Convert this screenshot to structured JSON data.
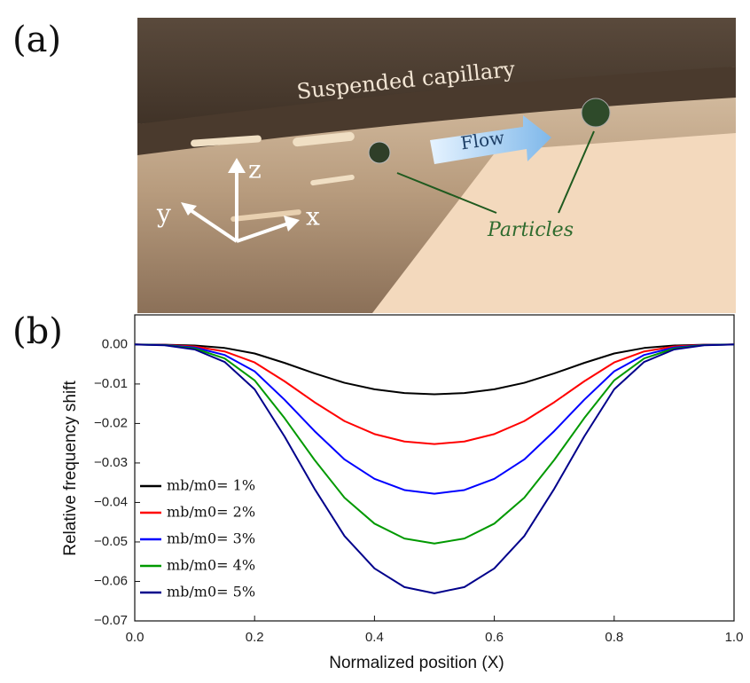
{
  "figure": {
    "panel_a_label": "(a)",
    "panel_b_label": "(b)",
    "illustration": {
      "capillary_label": "Suspended capillary",
      "flow_label": "Flow",
      "particles_label": "Particles",
      "axis_x": "x",
      "axis_y": "y",
      "axis_z": "z"
    }
  },
  "chart_data": {
    "type": "line",
    "x_label": "Normalized position (X)",
    "y_label": "Relative frequency shift",
    "x": [
      0,
      0.05,
      0.1,
      0.15,
      0.2,
      0.25,
      0.3,
      0.35,
      0.4,
      0.45,
      0.5,
      0.55,
      0.6,
      0.65,
      0.7,
      0.75,
      0.8,
      0.85,
      0.9,
      0.95,
      1
    ],
    "series": [
      {
        "name": "mb/m0= 1%",
        "color": "#000000",
        "values": [
          0,
          -4e-05,
          -0.00025,
          -0.00088,
          -0.00227,
          -0.00466,
          -0.00731,
          -0.0097,
          -0.01134,
          -0.01229,
          -0.0126,
          -0.01229,
          -0.01134,
          -0.0097,
          -0.00731,
          -0.00466,
          -0.00227,
          -0.00088,
          -0.00025,
          -4e-05,
          0
        ]
      },
      {
        "name": "mb/m0= 2%",
        "color": "#ff0000",
        "values": [
          0,
          -8e-05,
          -0.0005,
          -0.00176,
          -0.00454,
          -0.00932,
          -0.01462,
          -0.0194,
          -0.02268,
          -0.02457,
          -0.0252,
          -0.02457,
          -0.02268,
          -0.0194,
          -0.01462,
          -0.00932,
          -0.00454,
          -0.00176,
          -0.0005,
          -8e-05,
          0
        ]
      },
      {
        "name": "mb/m0= 3%",
        "color": "#0000ff",
        "values": [
          0,
          -0.00011,
          -0.00076,
          -0.00265,
          -0.0068,
          -0.01399,
          -0.02192,
          -0.02911,
          -0.03402,
          -0.03686,
          -0.0378,
          -0.03686,
          -0.03402,
          -0.02911,
          -0.02192,
          -0.01399,
          -0.0068,
          -0.00265,
          -0.00076,
          -0.00011,
          0
        ]
      },
      {
        "name": "mb/m0= 4%",
        "color": "#009900",
        "values": [
          0,
          -0.00015,
          -0.00101,
          -0.00353,
          -0.00907,
          -0.01865,
          -0.02923,
          -0.03881,
          -0.04536,
          -0.04914,
          -0.0504,
          -0.04914,
          -0.04536,
          -0.03881,
          -0.02923,
          -0.01865,
          -0.00907,
          -0.00353,
          -0.00101,
          -0.00015,
          0
        ]
      },
      {
        "name": "mb/m0= 5%",
        "color": "#00008b",
        "values": [
          0,
          -0.00019,
          -0.00126,
          -0.00441,
          -0.01134,
          -0.02331,
          -0.03654,
          -0.04851,
          -0.0567,
          -0.06143,
          -0.063,
          -0.06143,
          -0.0567,
          -0.04851,
          -0.03654,
          -0.02331,
          -0.01134,
          -0.00441,
          -0.00126,
          -0.00019,
          0
        ]
      }
    ],
    "xlim": [
      0,
      1
    ],
    "xticks": [
      {
        "value": 0,
        "label": "0.0"
      },
      0.2,
      0.4,
      0.6,
      0.8,
      {
        "value": 1,
        "label": "1.0"
      }
    ],
    "ylim": [
      -0.07,
      0.0075
    ],
    "yticks": [
      {
        "value": 0,
        "label": "0.00"
      },
      {
        "value": -0.01,
        "label": "−0.01"
      },
      {
        "value": -0.02,
        "label": "−0.02"
      },
      {
        "value": -0.03,
        "label": "−0.03"
      },
      {
        "value": -0.04,
        "label": "−0.04"
      },
      {
        "value": -0.05,
        "label": "−0.05"
      },
      {
        "value": -0.06,
        "label": "−0.06"
      },
      {
        "value": -0.07,
        "label": "−0.07"
      }
    ],
    "legend": "lower-left",
    "grid": false
  }
}
